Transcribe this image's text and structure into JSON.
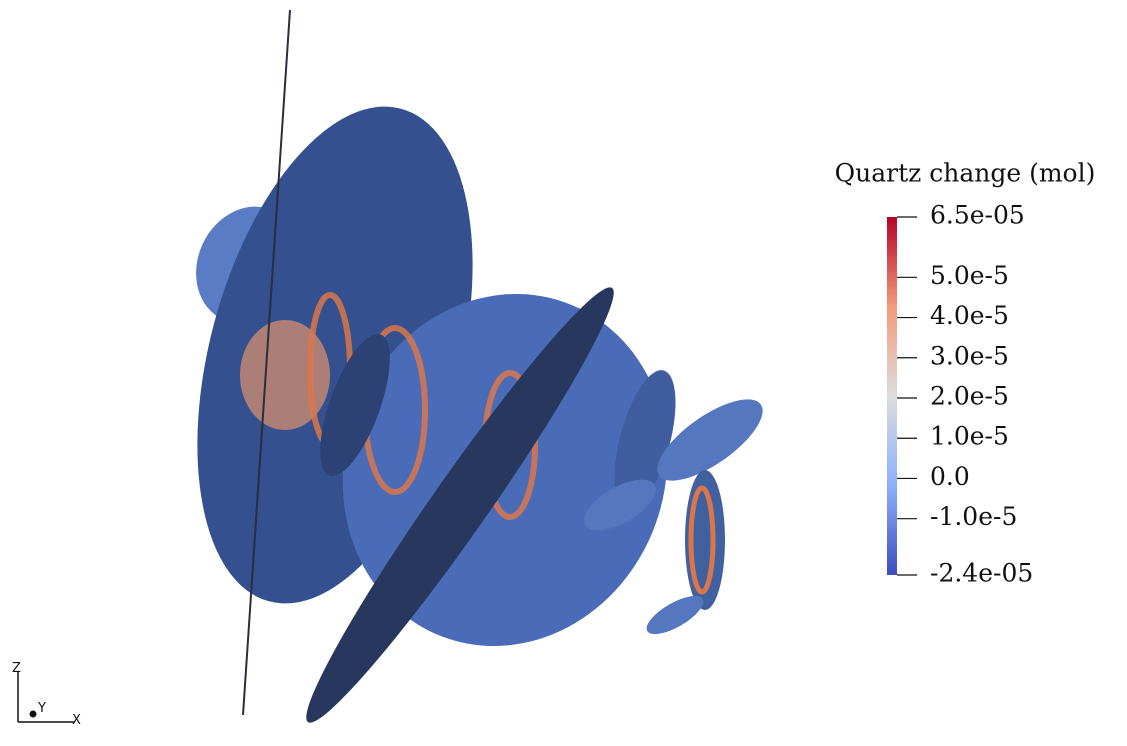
{
  "legend": {
    "title": "Quartz change (mol)",
    "range": [
      -2.4e-05,
      6.5e-05
    ],
    "ticks": [
      {
        "value": 6.5e-05,
        "label": "6.5e-05"
      },
      {
        "value": 5e-05,
        "label": "5.0e-5"
      },
      {
        "value": 4e-05,
        "label": "4.0e-5"
      },
      {
        "value": 3e-05,
        "label": "3.0e-5"
      },
      {
        "value": 2e-05,
        "label": "2.0e-5"
      },
      {
        "value": 1e-05,
        "label": "1.0e-5"
      },
      {
        "value": 0,
        "label": "0.0"
      },
      {
        "value": -1e-05,
        "label": "-1.0e-5"
      },
      {
        "value": -2.4e-05,
        "label": "-2.4e-05"
      }
    ]
  },
  "orientation": {
    "z": "Z",
    "y": "Y",
    "x": "X"
  }
}
